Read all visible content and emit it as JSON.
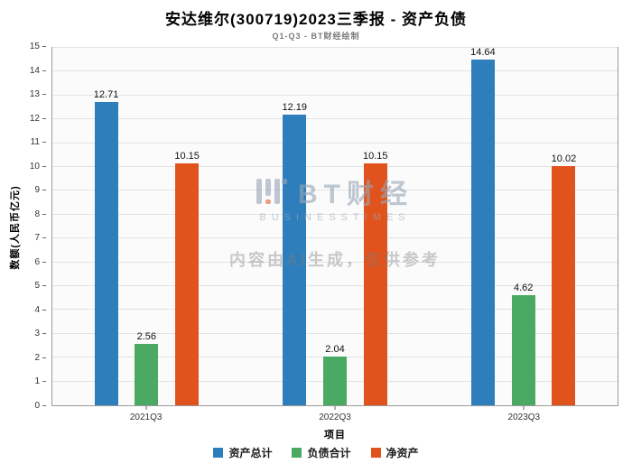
{
  "title": "安达维尔(300719)2023三季报 - 资产负债",
  "subtitle": "Q1-Q3 - BT财经绘制",
  "watermark": {
    "brand": "BT财经",
    "brand_sub": "BUSINESSTIMES",
    "notice": "内容由AI生成，仅供参考"
  },
  "chart_data": {
    "type": "bar",
    "title": "安达维尔(300719)2023三季报 - 资产负债",
    "subtitle": "Q1-Q3 - BT财经绘制",
    "categories": [
      "2021Q3",
      "2022Q3",
      "2023Q3"
    ],
    "series": [
      {
        "name": "资产总计",
        "color": "#2e7ebb",
        "values": [
          12.71,
          12.19,
          14.64
        ]
      },
      {
        "name": "负债合计",
        "color": "#4aa962",
        "values": [
          2.56,
          2.04,
          4.62
        ]
      },
      {
        "name": "净资产",
        "color": "#e1531d",
        "values": [
          10.15,
          10.15,
          10.02
        ]
      }
    ],
    "xlabel": "项目",
    "ylabel": "数额(人民币亿元)",
    "ylim": [
      0,
      15
    ],
    "ytick_step": 1,
    "grid": true,
    "legend_position": "bottom"
  }
}
